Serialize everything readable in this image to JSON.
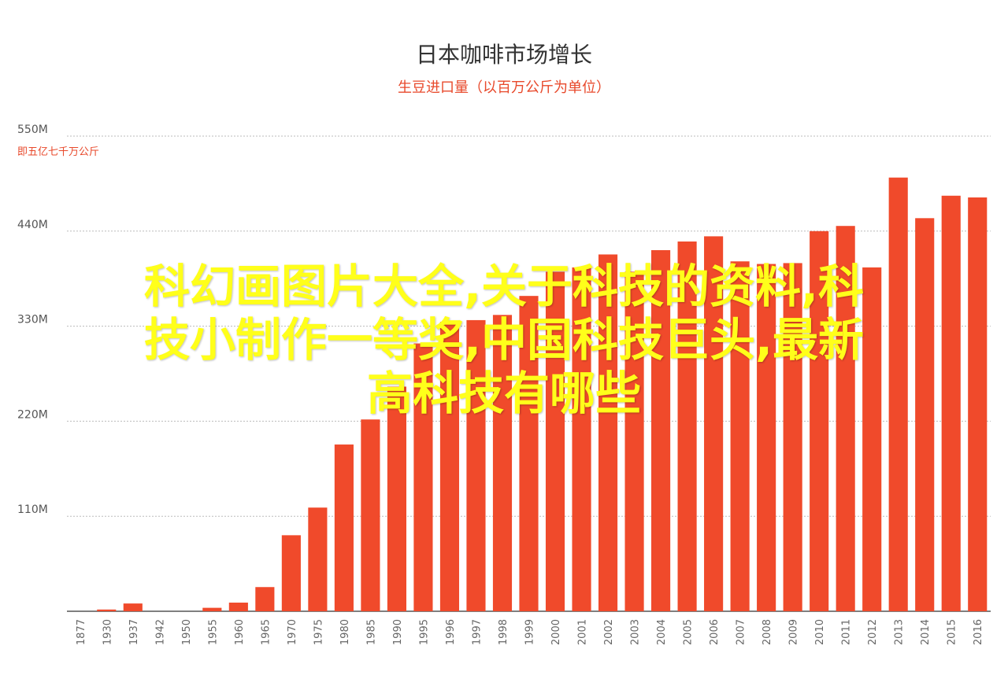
{
  "chart_data": {
    "type": "bar",
    "title": "日本咖啡市场增长",
    "subtitle": "生豆进口量（以百万公斤为单位）",
    "unit_note": "即五亿七千万公斤",
    "y_ticks": [
      "550M",
      "440M",
      "330M",
      "220M",
      "110M"
    ],
    "ylim": [
      0,
      550
    ],
    "grid": true,
    "categories": [
      "1877",
      "1930",
      "1937",
      "1942",
      "1950",
      "1955",
      "1960",
      "1965",
      "1970",
      "1975",
      "1980",
      "1985",
      "1990",
      "1995",
      "1996",
      "1997",
      "1998",
      "1999",
      "2000",
      "2001",
      "2002",
      "2003",
      "2004",
      "2005",
      "2006",
      "2007",
      "2008",
      "2009",
      "2010",
      "2011",
      "2012",
      "2013",
      "2014",
      "2015",
      "2016"
    ],
    "values": [
      0,
      2,
      9,
      0,
      0,
      4,
      10,
      28,
      88,
      120,
      193,
      222,
      260,
      310,
      335,
      337,
      343,
      365,
      393,
      398,
      413,
      393,
      418,
      428,
      434,
      405,
      402,
      403,
      440,
      446,
      398,
      502,
      455,
      481,
      479
    ],
    "bar_color": "#f04a2b"
  },
  "overlay_text": {
    "line1": "科幻画图片大全,关于科技的资料,科",
    "line2": "技小制作一等奖,中国科技巨头,最新",
    "line3": "高科技有哪些"
  }
}
